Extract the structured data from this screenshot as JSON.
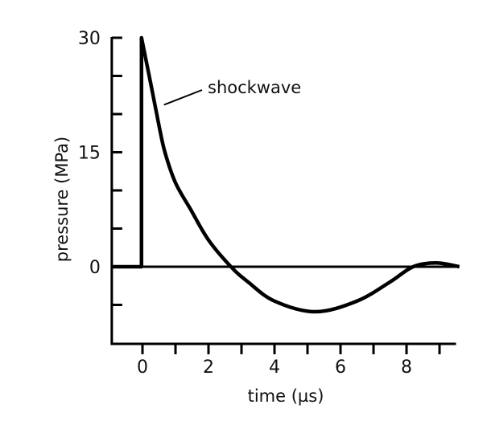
{
  "chart_data": {
    "type": "line",
    "title": "",
    "xlabel": "time (µs)",
    "ylabel": "pressure (MPa)",
    "xlim": [
      -0.93,
      9.5
    ],
    "ylim": [
      -10.1,
      30
    ],
    "x_ticks": [
      0,
      2,
      4,
      6,
      8
    ],
    "x_minor_ticks": [
      1,
      3,
      5,
      7,
      9
    ],
    "y_ticks": [
      0,
      15,
      30
    ],
    "y_minor_ticks": [
      -5,
      5,
      10,
      20,
      25
    ],
    "grid": false,
    "series": [
      {
        "name": "shockwave",
        "color": "#000000",
        "x": [
          -0.93,
          -0.03,
          -0.03,
          0.25,
          0.5,
          0.68,
          1.0,
          1.46,
          2.0,
          2.68,
          3.2,
          4.0,
          5.24,
          6.5,
          7.5,
          8.2,
          8.9,
          9.6
        ],
        "y": [
          0,
          0,
          30,
          24,
          18.5,
          15,
          11,
          7.5,
          3.5,
          0,
          -2,
          -4.5,
          -5.9,
          -4.5,
          -2,
          0,
          0.5,
          0
        ]
      }
    ],
    "annotations": [
      {
        "text": "shockwave",
        "points_to": {
          "x": 0.65,
          "y": 21
        }
      }
    ]
  }
}
